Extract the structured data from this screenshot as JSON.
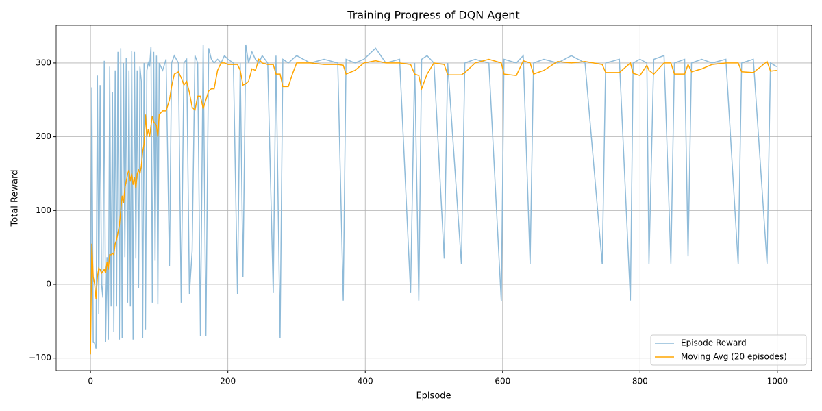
{
  "chart_data": {
    "type": "line",
    "title": "Training Progress of DQN Agent",
    "x_label": "Episode",
    "y_label": "Total Reward",
    "x": [
      0,
      2,
      4,
      6,
      8,
      10,
      12,
      14,
      16,
      18,
      20,
      22,
      24,
      26,
      28,
      30,
      32,
      34,
      36,
      38,
      40,
      42,
      44,
      46,
      48,
      50,
      52,
      54,
      56,
      58,
      60,
      62,
      64,
      66,
      68,
      70,
      72,
      74,
      76,
      78,
      80,
      82,
      84,
      86,
      88,
      90,
      92,
      94,
      96,
      98,
      100,
      105,
      110,
      115,
      118,
      122,
      128,
      132,
      136,
      140,
      144,
      148,
      152,
      156,
      160,
      164,
      168,
      172,
      176,
      180,
      185,
      190,
      195,
      200,
      208,
      214,
      218,
      222,
      226,
      230,
      235,
      240,
      245,
      250,
      258,
      266,
      270,
      276,
      280,
      288,
      294,
      300,
      320,
      340,
      360,
      368,
      372,
      385,
      398,
      415,
      430,
      450,
      466,
      472,
      478,
      482,
      490,
      500,
      515,
      520,
      540,
      545,
      560,
      580,
      598,
      602,
      620,
      630,
      640,
      645,
      660,
      680,
      700,
      720,
      745,
      750,
      770,
      786,
      790,
      800,
      810,
      813,
      820,
      835,
      845,
      850,
      865,
      870,
      875,
      890,
      905,
      925,
      943,
      948,
      965,
      985,
      990,
      999
    ],
    "series": [
      {
        "name": "Episode Reward",
        "color": "#8fbbd9",
        "values": [
          -95,
          267,
          -78,
          -80,
          -87,
          283,
          -40,
          270,
          0,
          -18,
          303,
          -78,
          37,
          -75,
          295,
          -30,
          260,
          -65,
          290,
          -30,
          315,
          -75,
          320,
          -73,
          300,
          37,
          307,
          -25,
          290,
          -30,
          316,
          -75,
          315,
          35,
          290,
          -5,
          295,
          275,
          -73,
          300,
          -62,
          290,
          300,
          295,
          322,
          -25,
          315,
          32,
          310,
          -27,
          300,
          290,
          305,
          25,
          300,
          310,
          300,
          -25,
          300,
          305,
          -13,
          45,
          310,
          300,
          -70,
          325,
          -70,
          320,
          305,
          300,
          305,
          300,
          310,
          305,
          300,
          -13,
          300,
          10,
          325,
          300,
          315,
          305,
          300,
          310,
          300,
          -12,
          310,
          -73,
          305,
          300,
          305,
          310,
          300,
          305,
          300,
          -22,
          305,
          300,
          305,
          320,
          300,
          305,
          -12,
          300,
          -22,
          305,
          310,
          300,
          35,
          300,
          27,
          300,
          305,
          300,
          -23,
          305,
          300,
          310,
          27,
          300,
          305,
          300,
          310,
          300,
          27,
          300,
          305,
          -22,
          300,
          305,
          300,
          27,
          305,
          310,
          28,
          300,
          305,
          38,
          300,
          305,
          300,
          305,
          27,
          300,
          305,
          28,
          300,
          295
        ]
      },
      {
        "name": "Moving Avg (20 episodes)",
        "color": "#ffa500",
        "values": [
          -95,
          55,
          10,
          0,
          -20,
          10,
          22,
          20,
          15,
          18,
          20,
          15,
          30,
          20,
          40,
          40,
          42,
          40,
          55,
          60,
          70,
          80,
          100,
          120,
          110,
          130,
          140,
          150,
          155,
          140,
          150,
          135,
          145,
          130,
          150,
          155,
          150,
          160,
          180,
          190,
          230,
          200,
          210,
          200,
          215,
          228,
          220,
          218,
          215,
          200,
          230,
          235,
          235,
          250,
          268,
          285,
          288,
          280,
          270,
          275,
          260,
          240,
          236,
          255,
          255,
          238,
          250,
          262,
          265,
          265,
          290,
          300,
          300,
          298,
          298,
          298,
          290,
          270,
          272,
          275,
          292,
          290,
          305,
          300,
          298,
          298,
          285,
          285,
          268,
          268,
          285,
          300,
          300,
          298,
          298,
          297,
          285,
          290,
          300,
          303,
          300,
          300,
          298,
          285,
          283,
          265,
          285,
          300,
          298,
          284,
          284,
          287,
          300,
          305,
          300,
          285,
          283,
          303,
          300,
          285,
          290,
          302,
          300,
          302,
          298,
          287,
          287,
          300,
          286,
          283,
          297,
          290,
          285,
          300,
          300,
          285,
          285,
          298,
          288,
          292,
          298,
          300,
          300,
          288,
          287,
          302,
          289,
          290
        ]
      }
    ],
    "xlim": [
      -50,
      1050
    ],
    "ylim": [
      -117,
      351
    ],
    "xticks": [
      0,
      200,
      400,
      600,
      800,
      1000
    ],
    "yticks": [
      {
        "value": -100,
        "label": "−100"
      },
      0,
      100,
      200,
      300
    ],
    "grid": true,
    "legend": "lower right"
  }
}
